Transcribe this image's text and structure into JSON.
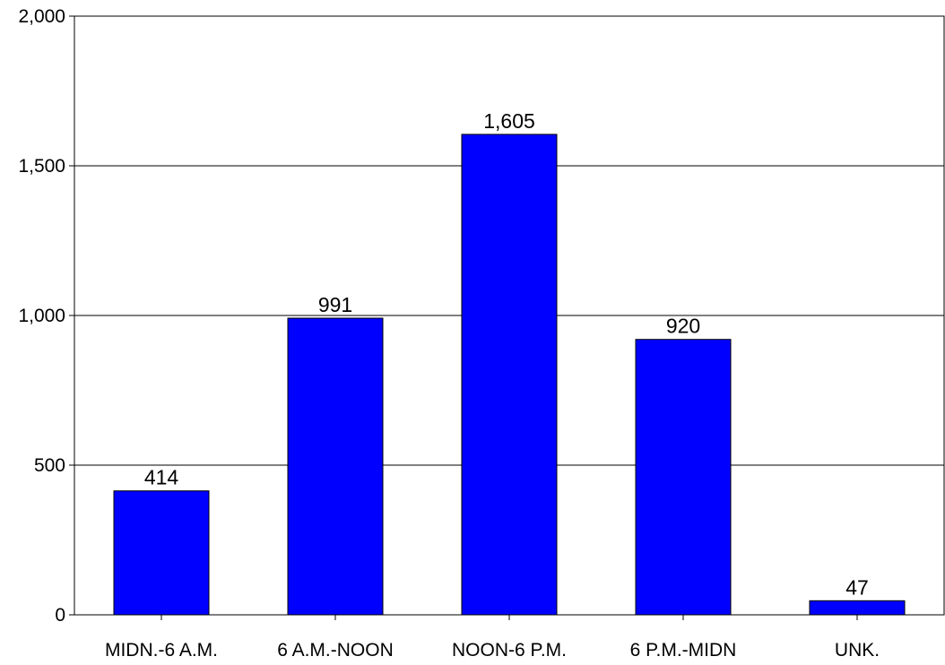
{
  "chart_data": {
    "type": "bar",
    "categories": [
      "MIDN.-6 A.M.",
      "6 A.M.-NOON",
      "NOON-6 P.M.",
      "6 P.M.-MIDN",
      "UNK."
    ],
    "values": [
      414,
      991,
      1605,
      920,
      47
    ],
    "data_labels": [
      "414",
      "991",
      "1,605",
      "920",
      "47"
    ],
    "y_ticks": [
      0,
      500,
      1000,
      1500,
      2000
    ],
    "y_tick_labels": [
      "0",
      "500",
      "1,000",
      "1,500",
      "2,000"
    ],
    "ylim": [
      0,
      2000
    ],
    "grid": true,
    "bar_color": "#0000FF",
    "bar_edge_color": "#000000",
    "title": "",
    "xlabel": "",
    "ylabel": ""
  }
}
